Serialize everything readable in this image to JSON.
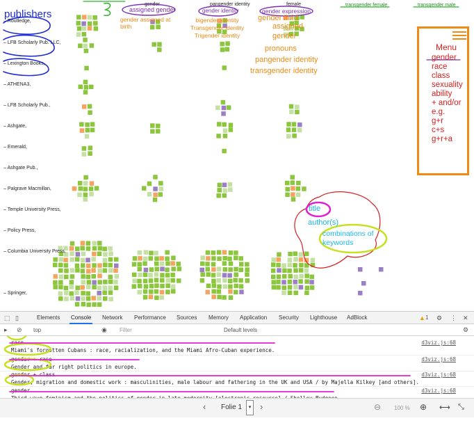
{
  "viz": {
    "publishers": [
      "Routledge,",
      "LFB Scholarly Pub. LLC,",
      "Lexington Books,",
      "ATHENA3,",
      "LFB Scholarly Pub.,",
      "Ashgate,",
      "Emerald,",
      "Ashgate Pub.,",
      "Palgrave Macmillan,",
      "Temple University Press,",
      "Policy Press,",
      "Columbia University Press,",
      "Springer,"
    ],
    "column_headers": [
      "gender",
      "pangender identity",
      "female",
      "transgender female",
      "transgender male"
    ],
    "annotations": {
      "publishers": "publishers",
      "assigned_gender": "assigned gender",
      "assigned_at_birth": "gender assigned at\nbirth",
      "pangender_list": "bigender identity\nTransgender identity\nTrigender identity",
      "gender_identity": "gender identity",
      "gender_expression": "gender expression",
      "gender_fluid": "gender fluid",
      "assigned": "assigned",
      "gender": "gender",
      "pronouns": "pronouns",
      "pangender_identity": "pangender identity",
      "transgender_identity": "transgender identity",
      "title": "title",
      "authors": "author(s)",
      "combinations": "combinations of\nkeywords"
    },
    "menu": {
      "title": "Menu",
      "items": [
        "gender",
        "race",
        "class",
        "sexuality",
        "ability",
        "+ and/or",
        "e.g.",
        "g+r",
        "c+s",
        "g+r+a"
      ]
    },
    "colors": {
      "green": "#8cc63f",
      "light_green": "#c5e0a5",
      "orange": "#f4a460",
      "purple": "#9b7fc4",
      "magenta": "#e020d0",
      "yellow_green": "#c8e020",
      "annot_orange": "#ef8a12",
      "annot_blue": "#1d2bd4",
      "annot_purple": "#7b2fb5",
      "cyan": "#18b8e8",
      "red": "#d61f1f"
    }
  },
  "devtools": {
    "tabs": [
      "Elements",
      "Console",
      "Network",
      "Performance",
      "Sources",
      "Memory",
      "Application",
      "Security",
      "Lighthouse",
      "AdBlock"
    ],
    "active_tab": "Console",
    "warning_count": "1",
    "context": "top",
    "filter_placeholder": "Filter",
    "levels": "Default levels",
    "logs": [
      {
        "label": "race",
        "text": "Miami's forgotten Cubans : race, racialization, and the Miami Afro-Cuban experience.",
        "src": "d3viz.js:68"
      },
      {
        "label": "gender + race",
        "text": "Gender and far right politics in europe.",
        "src": "d3viz.js:68"
      },
      {
        "label": "gender + class",
        "text": "Gender, migration and domestic work : masculinities, male labour and fathering in the UK and USA / by Majella Kilkey [and others].",
        "src": "d3viz.js:68"
      },
      {
        "label": "gender",
        "text": "Third-wave feminism and the politics of gender in late modernity [electronic resource] / Shelley Budgeon.",
        "src": "d3viz.js:68"
      }
    ]
  },
  "viewer": {
    "page": "Folie 1",
    "zoom": "100 %"
  }
}
